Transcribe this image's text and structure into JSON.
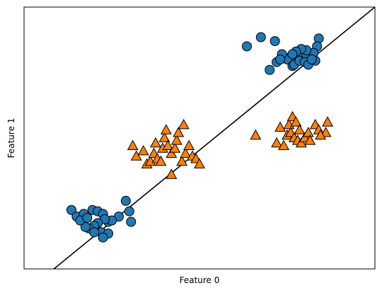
{
  "chart_data": {
    "type": "scatter",
    "title": "",
    "xlabel": "Feature 0",
    "ylabel": "Feature 1",
    "xticks": "none",
    "yticks": "none",
    "grid": false,
    "xlim": [
      0,
      100
    ],
    "ylim": [
      0,
      100
    ],
    "series": [
      {
        "marker": "circle",
        "color": "#1f77b4",
        "points": [
          [
            63.5,
            85
          ],
          [
            67.5,
            88.5
          ],
          [
            71.5,
            87
          ],
          [
            84,
            88
          ],
          [
            83.5,
            85
          ],
          [
            82.5,
            82.5
          ],
          [
            80,
            82
          ],
          [
            78,
            81
          ],
          [
            76,
            81
          ],
          [
            75,
            80
          ],
          [
            72,
            79
          ],
          [
            70,
            76
          ],
          [
            76.5,
            77.5
          ],
          [
            77,
            78
          ],
          [
            78.5,
            79.5
          ],
          [
            80,
            79
          ],
          [
            81,
            78
          ],
          [
            83,
            79.5
          ],
          [
            82,
            80
          ],
          [
            80.5,
            83.5
          ],
          [
            79,
            84
          ],
          [
            77.5,
            83
          ],
          [
            76.5,
            82
          ],
          [
            73.5,
            82
          ],
          [
            73,
            80
          ],
          [
            13.5,
            22.5
          ],
          [
            15,
            20
          ],
          [
            17,
            21
          ],
          [
            19.5,
            22.5
          ],
          [
            21,
            22
          ],
          [
            22.5,
            21
          ],
          [
            24,
            18
          ],
          [
            27,
            20
          ],
          [
            25,
            18.5
          ],
          [
            23,
            19
          ],
          [
            21,
            17.5
          ],
          [
            20,
            16.5
          ],
          [
            18.5,
            15.5
          ],
          [
            22,
            14
          ],
          [
            24,
            13.5
          ],
          [
            22.5,
            12
          ],
          [
            20,
            14
          ],
          [
            17.5,
            16
          ],
          [
            16,
            18.5
          ],
          [
            18,
            19.5
          ],
          [
            29,
            26
          ],
          [
            30,
            22
          ],
          [
            30.5,
            18
          ]
        ]
      },
      {
        "marker": "triangle",
        "color": "#ff7f0e",
        "points": [
          [
            31,
            47
          ],
          [
            32,
            43
          ],
          [
            34,
            45
          ],
          [
            35,
            40
          ],
          [
            36,
            41
          ],
          [
            37,
            44
          ],
          [
            37.5,
            48
          ],
          [
            38,
            42
          ],
          [
            39,
            41
          ],
          [
            39.5,
            46
          ],
          [
            40,
            50
          ],
          [
            40.5,
            53
          ],
          [
            41,
            47
          ],
          [
            42,
            44
          ],
          [
            43,
            46
          ],
          [
            43.5,
            49
          ],
          [
            44,
            52
          ],
          [
            45,
            41
          ],
          [
            45.5,
            55
          ],
          [
            46,
            44
          ],
          [
            47,
            47
          ],
          [
            48,
            43
          ],
          [
            49,
            42
          ],
          [
            50,
            40
          ],
          [
            42,
            36
          ],
          [
            66,
            51
          ],
          [
            72,
            48
          ],
          [
            73,
            54
          ],
          [
            74,
            47
          ],
          [
            75,
            51
          ],
          [
            75.5,
            55
          ],
          [
            76,
            52
          ],
          [
            76.5,
            58
          ],
          [
            77,
            50
          ],
          [
            77.5,
            56
          ],
          [
            78,
            49
          ],
          [
            78.5,
            53
          ],
          [
            79,
            48
          ],
          [
            80,
            50
          ],
          [
            81,
            52
          ],
          [
            81.5,
            49
          ],
          [
            83,
            55
          ],
          [
            84,
            53
          ],
          [
            86,
            52
          ],
          [
            86.5,
            56
          ],
          [
            84.5,
            51
          ]
        ]
      }
    ],
    "line": {
      "from": [
        8.5,
        0
      ],
      "to": [
        100,
        100
      ]
    }
  }
}
